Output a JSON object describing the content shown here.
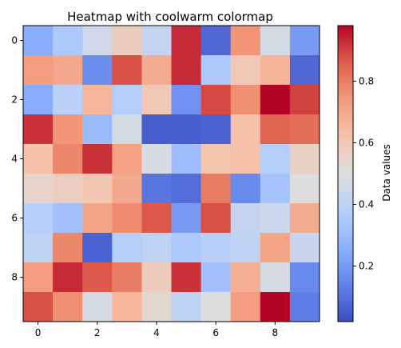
{
  "chart_data": {
    "type": "heatmap",
    "title": "Heatmap with coolwarm colormap",
    "colormap": "coolwarm",
    "rows": 10,
    "cols": 10,
    "vmin": 0.02,
    "vmax": 0.98,
    "x_ticks": [
      0,
      2,
      4,
      6,
      8
    ],
    "y_ticks": [
      0,
      2,
      4,
      6,
      8
    ],
    "colorbar": {
      "label": "Data values",
      "ticks": [
        0.2,
        0.4,
        0.6,
        0.8
      ]
    },
    "values": [
      [
        0.25,
        0.35,
        0.45,
        0.58,
        0.42,
        0.93,
        0.08,
        0.75,
        0.47,
        0.2
      ],
      [
        0.73,
        0.7,
        0.17,
        0.88,
        0.69,
        0.93,
        0.35,
        0.6,
        0.67,
        0.08
      ],
      [
        0.25,
        0.39,
        0.66,
        0.37,
        0.6,
        0.18,
        0.89,
        0.76,
        0.98,
        0.9
      ],
      [
        0.92,
        0.75,
        0.3,
        0.47,
        0.06,
        0.06,
        0.07,
        0.63,
        0.85,
        0.83
      ],
      [
        0.63,
        0.78,
        0.92,
        0.72,
        0.48,
        0.31,
        0.62,
        0.63,
        0.37,
        0.56
      ],
      [
        0.55,
        0.57,
        0.61,
        0.7,
        0.11,
        0.09,
        0.8,
        0.16,
        0.33,
        0.5
      ],
      [
        0.38,
        0.32,
        0.71,
        0.77,
        0.87,
        0.2,
        0.88,
        0.42,
        0.44,
        0.69
      ],
      [
        0.4,
        0.78,
        0.07,
        0.37,
        0.4,
        0.35,
        0.38,
        0.4,
        0.71,
        0.43
      ],
      [
        0.73,
        0.93,
        0.87,
        0.8,
        0.58,
        0.92,
        0.32,
        0.68,
        0.48,
        0.16
      ],
      [
        0.88,
        0.76,
        0.47,
        0.66,
        0.53,
        0.4,
        0.5,
        0.73,
        0.98,
        0.13
      ]
    ]
  }
}
